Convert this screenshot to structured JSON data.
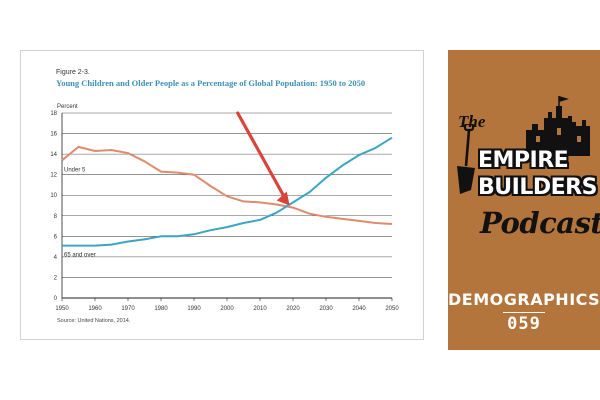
{
  "figure": {
    "label": "Figure 2-3.",
    "title": "Young Children and Older People as a Percentage of Global Population: 1950 to 2050",
    "source": "Source: United Nations, 2014."
  },
  "chart_data": {
    "type": "line",
    "ylabel": "Percent",
    "x_ticks": [
      "1950",
      "1960",
      "1970",
      "1980",
      "1990",
      "2000",
      "2010",
      "2020",
      "2030",
      "2040",
      "2050"
    ],
    "y_ticks": [
      "0",
      "2",
      "4",
      "6",
      "8",
      "10",
      "12",
      "14",
      "16",
      "18"
    ],
    "xlim": [
      1950,
      2050
    ],
    "ylim": [
      0,
      18
    ],
    "grid": "horizontal",
    "series": [
      {
        "name": "Under 5",
        "color": "#e08a6d",
        "x": [
          1950,
          1955,
          1960,
          1965,
          1970,
          1975,
          1980,
          1985,
          1990,
          1995,
          2000,
          2005,
          2010,
          2015,
          2020,
          2025,
          2030,
          2035,
          2040,
          2045,
          2050
        ],
        "values": [
          13.4,
          14.7,
          14.3,
          14.4,
          14.1,
          13.3,
          12.3,
          12.2,
          12.0,
          10.9,
          9.9,
          9.4,
          9.3,
          9.1,
          8.8,
          8.2,
          7.9,
          7.7,
          7.5,
          7.3,
          7.2
        ]
      },
      {
        "name": "65 and over",
        "color": "#3aa6c4",
        "x": [
          1950,
          1955,
          1960,
          1965,
          1970,
          1975,
          1980,
          1985,
          1990,
          1995,
          2000,
          2005,
          2010,
          2015,
          2020,
          2025,
          2030,
          2035,
          2040,
          2045,
          2050
        ],
        "values": [
          5.1,
          5.1,
          5.1,
          5.2,
          5.5,
          5.7,
          6.0,
          6.0,
          6.2,
          6.6,
          6.9,
          7.3,
          7.6,
          8.3,
          9.3,
          10.3,
          11.7,
          12.9,
          13.9,
          14.6,
          15.6
        ]
      }
    ],
    "annotation": {
      "type": "arrow",
      "color": "#d9433a",
      "points_to_x": 2019
    }
  },
  "brand": {
    "the": "The",
    "empire": "EMPIRE",
    "builders": "BUILDERS",
    "podcast": "Podcast",
    "topic": "DEMOGRAPHICS",
    "episode": "059",
    "bg_color": "#b3753b",
    "icons": [
      "castle-icon",
      "shovel-icon"
    ]
  }
}
